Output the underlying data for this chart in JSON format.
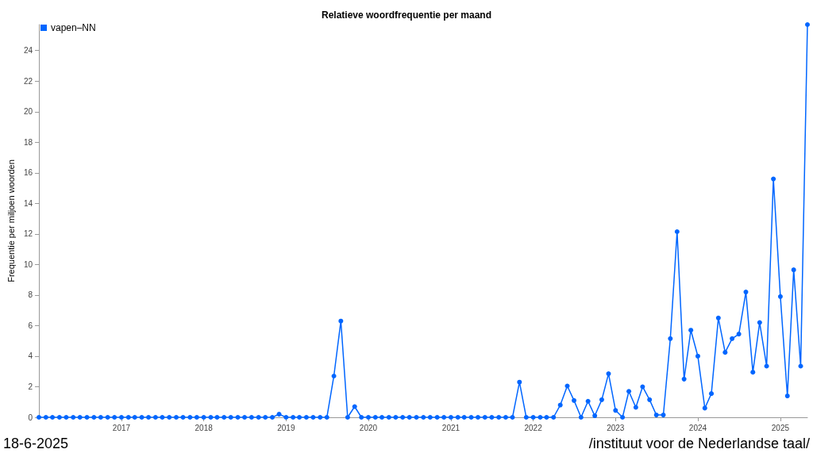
{
  "chart_data": {
    "type": "line",
    "title": "Relatieve woordfrequentie per maand",
    "ylabel": "Frequentie per miljoen woorden",
    "x": [
      "2016-01",
      "2016-02",
      "2016-03",
      "2016-04",
      "2016-05",
      "2016-06",
      "2016-07",
      "2016-08",
      "2016-09",
      "2016-10",
      "2016-11",
      "2016-12",
      "2017-01",
      "2017-02",
      "2017-03",
      "2017-04",
      "2017-05",
      "2017-06",
      "2017-07",
      "2017-08",
      "2017-09",
      "2017-10",
      "2017-11",
      "2017-12",
      "2018-01",
      "2018-02",
      "2018-03",
      "2018-04",
      "2018-05",
      "2018-06",
      "2018-07",
      "2018-08",
      "2018-09",
      "2018-10",
      "2018-11",
      "2018-12",
      "2019-01",
      "2019-02",
      "2019-03",
      "2019-04",
      "2019-05",
      "2019-06",
      "2019-07",
      "2019-08",
      "2019-09",
      "2019-10",
      "2019-11",
      "2019-12",
      "2020-01",
      "2020-02",
      "2020-03",
      "2020-04",
      "2020-05",
      "2020-06",
      "2020-07",
      "2020-08",
      "2020-09",
      "2020-10",
      "2020-11",
      "2020-12",
      "2021-01",
      "2021-02",
      "2021-03",
      "2021-04",
      "2021-05",
      "2021-06",
      "2021-07",
      "2021-08",
      "2021-09",
      "2021-10",
      "2021-11",
      "2021-12",
      "2022-01",
      "2022-02",
      "2022-03",
      "2022-04",
      "2022-05",
      "2022-06",
      "2022-07",
      "2022-08",
      "2022-09",
      "2022-10",
      "2022-11",
      "2022-12",
      "2023-01",
      "2023-02",
      "2023-03",
      "2023-04",
      "2023-05",
      "2023-06",
      "2023-07",
      "2023-08",
      "2023-09",
      "2023-10",
      "2023-11",
      "2023-12",
      "2024-01",
      "2024-02",
      "2024-03",
      "2024-04",
      "2024-05",
      "2024-06",
      "2024-07",
      "2024-08",
      "2024-09",
      "2024-10",
      "2024-11",
      "2024-12",
      "2025-01",
      "2025-02",
      "2025-03",
      "2025-04",
      "2025-05"
    ],
    "series": [
      {
        "name": "vapen–NN",
        "color": "#0066ff",
        "values": [
          0,
          0,
          0,
          0,
          0,
          0,
          0,
          0,
          0,
          0,
          0,
          0,
          0,
          0,
          0,
          0,
          0,
          0,
          0,
          0,
          0,
          0,
          0,
          0,
          0,
          0,
          0,
          0,
          0,
          0,
          0,
          0,
          0,
          0,
          0,
          0.2,
          0,
          0,
          0,
          0,
          0,
          0,
          0,
          2.7,
          6.3,
          0,
          0.7,
          0,
          0,
          0,
          0,
          0,
          0,
          0,
          0,
          0,
          0,
          0,
          0,
          0,
          0,
          0,
          0,
          0,
          0,
          0,
          0,
          0,
          0,
          0,
          2.3,
          0,
          0,
          0,
          0,
          0,
          0.8,
          2.05,
          1.1,
          0,
          1.05,
          0.1,
          1.15,
          2.85,
          0.45,
          0,
          1.7,
          0.65,
          2.0,
          1.15,
          0.15,
          0.15,
          5.15,
          12.15,
          2.5,
          5.7,
          4.0,
          0.6,
          1.55,
          6.5,
          4.25,
          5.15,
          5.45,
          8.2,
          2.95,
          6.2,
          3.35,
          15.6,
          7.9,
          1.4,
          9.65,
          3.35,
          25.7
        ]
      }
    ],
    "xlim": [
      "2016-01",
      "2025-05"
    ],
    "xticks": [
      "2017",
      "2018",
      "2019",
      "2020",
      "2021",
      "2022",
      "2023",
      "2024",
      "2025"
    ],
    "ylim": [
      0,
      25.7
    ],
    "yticks": [
      0,
      2,
      4,
      6,
      8,
      10,
      12,
      14,
      16,
      18,
      20,
      22,
      24
    ],
    "grid": false,
    "legend": "top left",
    "marker": "circle",
    "line_style": "solid",
    "annotations": [
      "18-6-2025",
      "/instituut voor de Nederlandse taal/"
    ]
  }
}
